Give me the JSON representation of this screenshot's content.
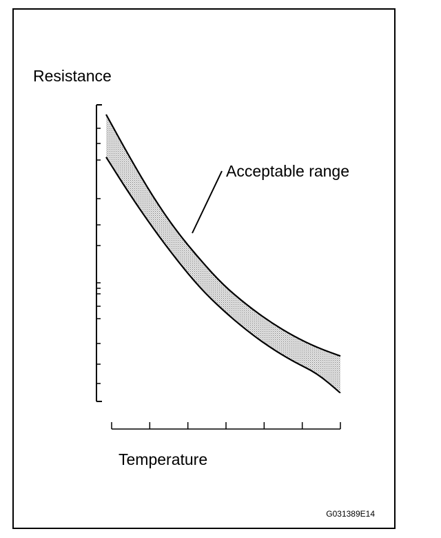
{
  "figure_code": "G031389E14",
  "chart_data": {
    "type": "area",
    "title": "",
    "xlabel": "Temperature",
    "ylabel": "Resistance",
    "annotation": "Acceptable range",
    "y_scale": "log",
    "x_ticks": 7,
    "y_minor_ticks": 14,
    "grid": false,
    "legend": "none",
    "colors": {
      "band_fill": "#cfcfcf",
      "lines": "#000000"
    },
    "band": {
      "x": [
        0,
        0.1,
        0.2,
        0.3,
        0.4,
        0.5,
        0.6,
        0.7,
        0.8,
        0.9,
        1.0
      ],
      "upper": [
        1.0,
        0.85,
        0.71,
        0.59,
        0.49,
        0.4,
        0.33,
        0.27,
        0.22,
        0.18,
        0.15
      ],
      "lower": [
        0.85,
        0.72,
        0.6,
        0.49,
        0.39,
        0.31,
        0.24,
        0.18,
        0.13,
        0.09,
        0.02
      ]
    }
  }
}
